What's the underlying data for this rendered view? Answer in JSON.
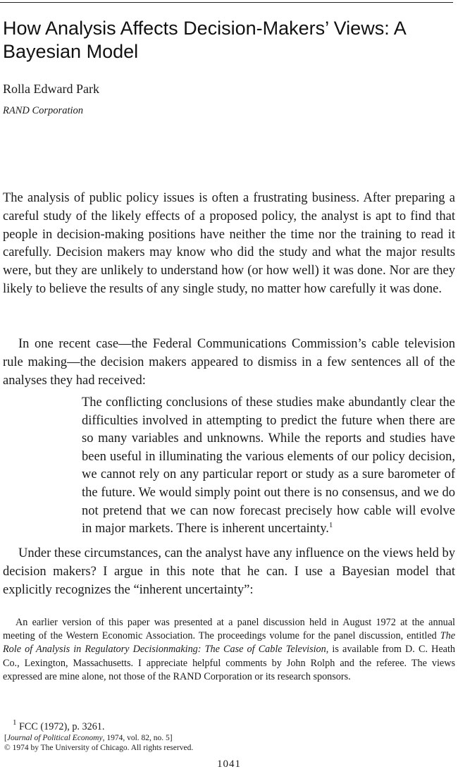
{
  "title": "How Analysis Affects Decision-Makers’ Views: A Bayesian Model",
  "author": "Rolla Edward Park",
  "affiliation": "RAND Corporation",
  "paragraphs": {
    "p1": "The analysis of public policy issues is often a frustrating business. After preparing a careful study of the likely effects of a proposed policy, the analyst is apt to find that people in decision-making positions have neither the time nor the training to read it carefully. Decision makers may know who did the study and what the major results were, but they are unlikely to understand how (or how well) it was done. Nor are they likely to believe the results of any single study, no matter how carefully it was done.",
    "p2": "In one recent case—the Federal Communications Commission’s cable television rule making—the decision makers appeared to dismiss in a few sentences all of the analyses they had received:",
    "quote": "The conflicting conclusions of these studies make abundantly clear the difficulties involved in attempting to predict the future when there are so many variables and unknowns. While the reports and studies have been useful in illuminating the various elements of our policy decision, we cannot rely on any particular report or study as a sure barometer of the future. We would simply point out there is no consensus, and we do not pretend that we can now forecast precisely how cable will evolve in major markets. There is inherent uncertainty.",
    "quote_note": "1",
    "p3": "Under these circumstances, can the analyst have any influence on the views held by decision makers? I argue in this note that he can. I use a Bayesian model that explicitly recognizes the “inherent uncertainty”:"
  },
  "footnotes": {
    "fn_a1": "An earlier version of this paper was presented at a panel discussion held in August 1972 at the annual meeting of the Western Economic Association. The proceedings volume for the panel discussion, entitled ",
    "fn_a_title": "The Role of Analysis in Regulatory Decisionmaking: The Case of Cable Television",
    "fn_a2": ", is available from D. C. Heath Co., Lexington, Massachusetts. I appreciate helpful comments by John Rolph and the referee. The views expressed are mine alone, not those of the RAND Corporation or its research sponsors.",
    "fn1_mark": "1",
    "fn1_text": " FCC (1972), p. 3261.",
    "journal_open": "[",
    "journal_name": "Journal of Political Economy",
    "journal_rest": ", 1974, vol. 82, no. 5]",
    "copyright": "© 1974 by The University of Chicago. All rights reserved."
  },
  "page_number": "1041"
}
